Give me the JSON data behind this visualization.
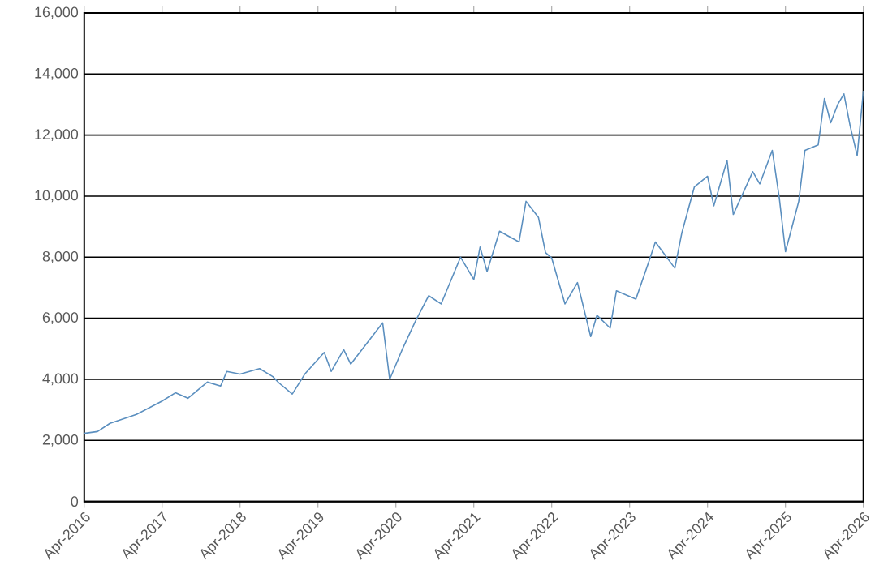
{
  "chart_data": {
    "type": "line",
    "x": [
      "2016-04",
      "2016-06",
      "2016-08",
      "2016-12",
      "2017-04",
      "2017-06",
      "2017-08",
      "2017-11",
      "2018-01",
      "2018-02",
      "2018-04",
      "2018-07",
      "2018-09",
      "2018-10",
      "2018-12",
      "2019-02",
      "2019-05",
      "2019-06",
      "2019-08",
      "2019-09",
      "2020-02",
      "2020-03",
      "2020-05",
      "2020-07",
      "2020-09",
      "2020-11",
      "2021-02",
      "2021-04",
      "2021-05",
      "2021-06",
      "2021-08",
      "2021-11",
      "2021-12",
      "2022-02",
      "2022-03",
      "2022-04",
      "2022-06",
      "2022-08",
      "2022-10",
      "2022-11",
      "2023-01",
      "2023-02",
      "2023-05",
      "2023-07",
      "2023-08",
      "2023-11",
      "2023-12",
      "2024-02",
      "2024-04",
      "2024-05",
      "2024-07",
      "2024-08",
      "2024-11",
      "2024-12",
      "2025-02",
      "2025-03",
      "2025-04",
      "2025-06",
      "2025-07",
      "2025-09",
      "2025-10",
      "2025-11",
      "2025-12",
      "2026-01",
      "2026-02",
      "2026-03",
      "2026-04"
    ],
    "series": [
      {
        "color": "#5b8fbf",
        "values": [
          2230,
          2290,
          2560,
          2850,
          3290,
          3560,
          3380,
          3910,
          3780,
          4260,
          4170,
          4350,
          4090,
          3880,
          3520,
          4170,
          4880,
          4260,
          4970,
          4500,
          5850,
          4000,
          4970,
          5900,
          6740,
          6470,
          8000,
          7270,
          8330,
          7530,
          8850,
          8500,
          9830,
          9300,
          8150,
          7970,
          6470,
          7170,
          5400,
          6100,
          5680,
          6900,
          6630,
          7880,
          8500,
          7640,
          8800,
          10300,
          10650,
          9680,
          11170,
          9400,
          10800,
          10400,
          11500,
          9950,
          8180,
          9830,
          11500,
          11680,
          13200,
          12400,
          13000,
          13350,
          12300,
          11330,
          13450
        ]
      }
    ],
    "xlim": [
      "2016-04",
      "2026-04"
    ],
    "xticks": [
      {
        "value": "2016-04",
        "label": "Apr-2016"
      },
      {
        "value": "2017-04",
        "label": "Apr-2017"
      },
      {
        "value": "2018-04",
        "label": "Apr-2018"
      },
      {
        "value": "2019-04",
        "label": "Apr-2019"
      },
      {
        "value": "2020-04",
        "label": "Apr-2020"
      },
      {
        "value": "2021-04",
        "label": "Apr-2021"
      },
      {
        "value": "2022-04",
        "label": "Apr-2022"
      },
      {
        "value": "2023-04",
        "label": "Apr-2023"
      },
      {
        "value": "2024-04",
        "label": "Apr-2024"
      },
      {
        "value": "2025-04",
        "label": "Apr-2025"
      },
      {
        "value": "2026-04",
        "label": "Apr-2026"
      }
    ],
    "ylim": [
      0,
      16000
    ],
    "yticks": [
      0,
      {
        "value": 2000,
        "label": "2,000"
      },
      {
        "value": 4000,
        "label": "4,000"
      },
      {
        "value": 6000,
        "label": "6,000"
      },
      {
        "value": 8000,
        "label": "8,000"
      },
      {
        "value": 10000,
        "label": "10,000"
      },
      {
        "value": 12000,
        "label": "12,000"
      },
      {
        "value": 14000,
        "label": "14,000"
      },
      {
        "value": 16000,
        "label": "16,000"
      }
    ],
    "grid": "y",
    "marker": "none",
    "line_style": "solid"
  }
}
